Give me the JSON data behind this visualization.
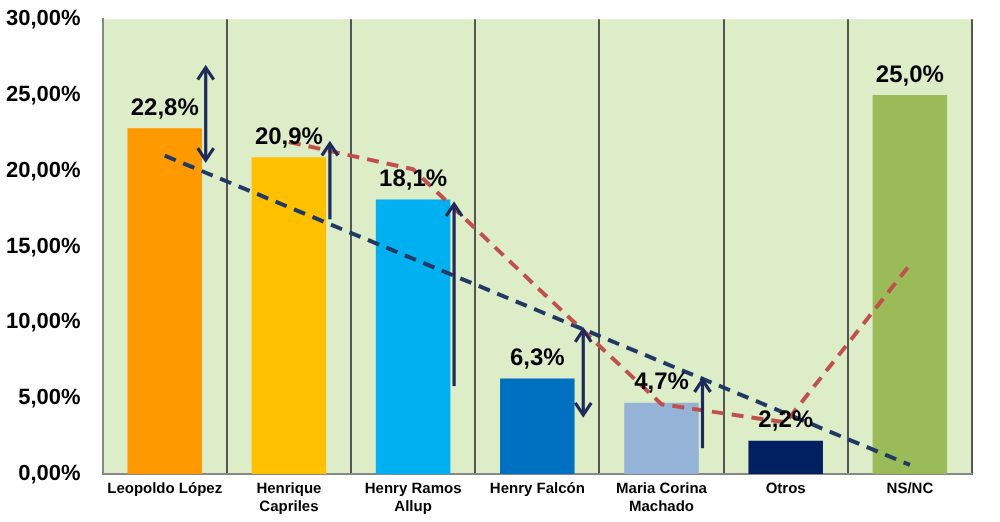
{
  "chart_data": {
    "type": "bar",
    "categories": [
      "Leopoldo López",
      "Henrique Capriles",
      "Henry Ramos Allup",
      "Henry Falcón",
      "Maria Corina Machado",
      "Otros",
      "NS/NC"
    ],
    "series": [
      {
        "colors": [
          "#ff9900",
          "#ffc000",
          "#00b0f0",
          "#0070c0",
          "#95b3d7",
          "#002060",
          "#9bbb59"
        ],
        "values": [
          22.8,
          20.9,
          18.1,
          6.3,
          4.7,
          2.2,
          25.0
        ],
        "value_labels": [
          "22,8%",
          "20,9%",
          "18,1%",
          "6,3%",
          "4,7%",
          "2,2%",
          "25,0%"
        ]
      },
      {
        "type": "line",
        "color": "#c0504d",
        "line_style": "dashed",
        "values": [
          null,
          21.9,
          20.1,
          12.3,
          4.6,
          3.4,
          13.8
        ]
      },
      {
        "type": "line",
        "color": "#1f3864",
        "line_style": "dashed",
        "values": [
          21.0,
          17.6,
          14.2,
          10.8,
          7.4,
          4.0,
          0.6
        ]
      }
    ],
    "ylim": [
      0,
      30
    ],
    "yticks": [
      {
        "value": 0,
        "label": "0,00%"
      },
      {
        "value": 5,
        "label": "5,00%"
      },
      {
        "value": 10,
        "label": "10,00%"
      },
      {
        "value": 15,
        "label": "15,00%"
      },
      {
        "value": 20,
        "label": "20,00%"
      },
      {
        "value": 25,
        "label": "25,00%"
      },
      {
        "value": 30,
        "label": "30,00%"
      }
    ],
    "grid": "x",
    "legend": false,
    "marker": "none"
  }
}
